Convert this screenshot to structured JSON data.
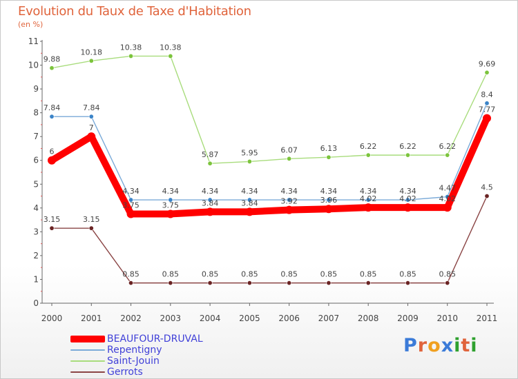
{
  "header": {
    "title": "Evolution du Taux de Taxe d'Habitation",
    "subtitle": "(en %)"
  },
  "logo": {
    "text": "Proxiti",
    "letters": [
      "P",
      "r",
      "o",
      "x",
      "i",
      "t",
      "i"
    ],
    "colors": [
      "#3b7bd8",
      "#e0643c",
      "#f0a020",
      "#3b7bd8",
      "#2ea02e",
      "#e0643c",
      "#2ea02e"
    ]
  },
  "chart_data": {
    "type": "line",
    "title": "Evolution du Taux de Taxe d'Habitation",
    "ylabel": "(en %)",
    "xlabel": "",
    "ylim": [
      0,
      11
    ],
    "y_ticks": [
      "0",
      "1",
      "2",
      "3",
      "4",
      "5",
      "6",
      "7",
      "8",
      "9",
      "10",
      "11"
    ],
    "grid": false,
    "legend_position": "bottom-left",
    "categories": [
      "2000",
      "2001",
      "2002",
      "2003",
      "2004",
      "2005",
      "2006",
      "2007",
      "2008",
      "2009",
      "2010",
      "2011"
    ],
    "series": [
      {
        "name": "Saint-Jouin",
        "color": "#a8dc7c",
        "marker": "#7cc43c",
        "values": [
          9.88,
          10.18,
          10.38,
          10.38,
          5.87,
          5.95,
          6.07,
          6.13,
          6.22,
          6.22,
          6.22,
          9.69
        ],
        "labels": [
          "9.88",
          "10.18",
          "10.38",
          "10.38",
          "5.87",
          "5.95",
          "6.07",
          "6.13",
          "6.22",
          "6.22",
          "6.22",
          "9.69"
        ]
      },
      {
        "name": "Repentigny",
        "color": "#7aaad8",
        "marker": "#3b84c8",
        "values": [
          7.84,
          7.84,
          4.34,
          4.34,
          4.34,
          4.34,
          4.34,
          4.34,
          4.34,
          4.34,
          4.47,
          8.4
        ],
        "labels": [
          "7.84",
          "7.84",
          "4.34",
          "4.34",
          "4.34",
          "4.34",
          "4.34",
          "4.34",
          "4.34",
          "4.34",
          "4.47",
          "8.4"
        ]
      },
      {
        "name": "Gerrots",
        "color": "#8a4444",
        "marker": "#6a2424",
        "values": [
          3.15,
          3.15,
          0.85,
          0.85,
          0.85,
          0.85,
          0.85,
          0.85,
          0.85,
          0.85,
          0.85,
          4.5
        ],
        "labels": [
          "3.15",
          "3.15",
          "0.85",
          "0.85",
          "0.85",
          "0.85",
          "0.85",
          "0.85",
          "0.85",
          "0.85",
          "0.85",
          "4.5"
        ]
      },
      {
        "name": "BEAUFOUR-DRUVAL",
        "color": "#ff0000",
        "marker": "#ff0000",
        "values": [
          6,
          7,
          3.75,
          3.75,
          3.84,
          3.84,
          3.92,
          3.96,
          4.02,
          4.02,
          4.02,
          7.77
        ],
        "labels": [
          "6",
          "7",
          "3.75",
          "3.75",
          "3.84",
          "3.84",
          "3.92",
          "3.96",
          "4.02",
          "4.02",
          "4.02",
          "7.77"
        ]
      }
    ]
  },
  "legend": {
    "items": [
      {
        "label": "BEAUFOUR-DRUVAL",
        "color": "#ff0000"
      },
      {
        "label": "Repentigny",
        "color": "#7aaad8"
      },
      {
        "label": "Saint-Jouin",
        "color": "#a8dc7c"
      },
      {
        "label": "Gerrots",
        "color": "#8a4444"
      }
    ]
  }
}
